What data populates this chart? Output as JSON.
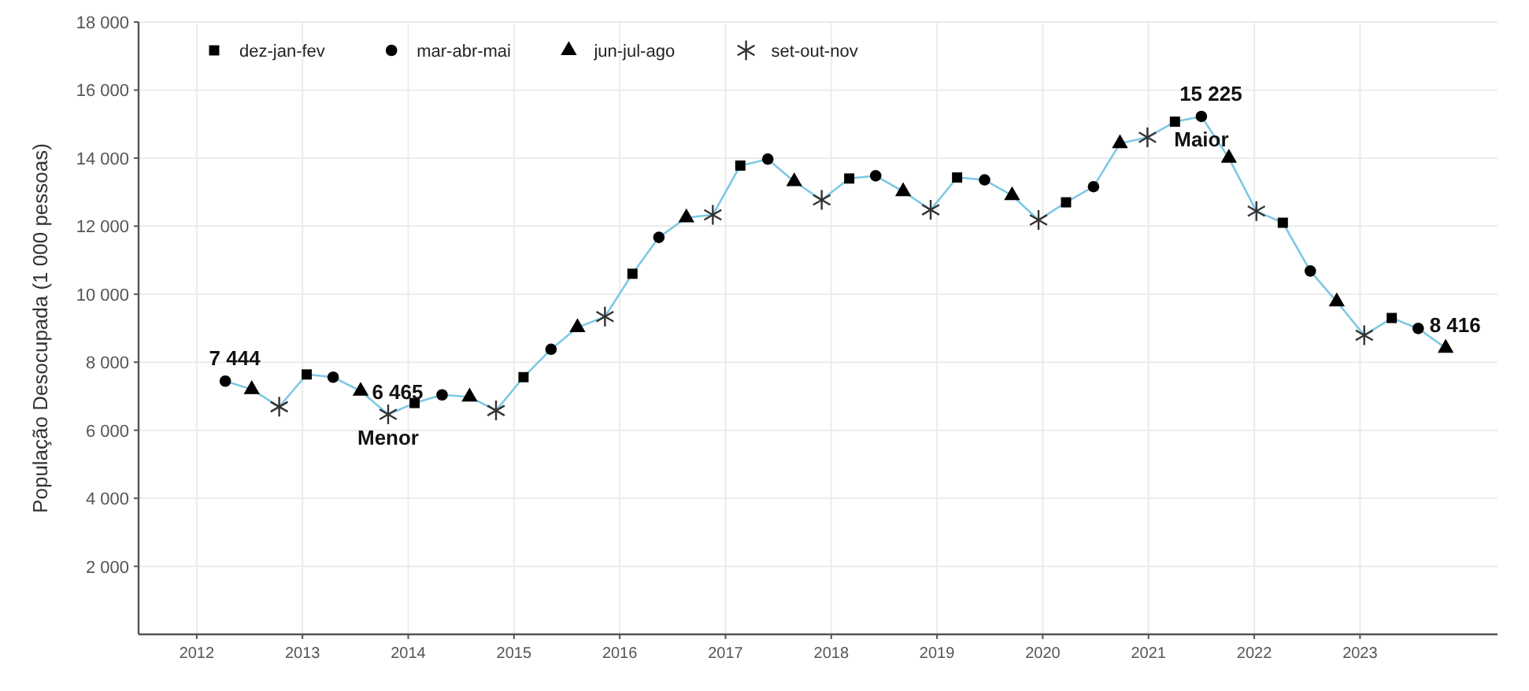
{
  "chart_data": {
    "type": "line",
    "ylabel": "População Desocupada (1 000 pessoas)",
    "xlim": [
      2011.45,
      2024.3
    ],
    "xticks": [
      2012,
      2013,
      2014,
      2015,
      2016,
      2017,
      2018,
      2019,
      2020,
      2021,
      2022,
      2023
    ],
    "ylim": [
      0,
      18000
    ],
    "yticks": [
      {
        "value": 2000,
        "label": "2 000"
      },
      {
        "value": 4000,
        "label": "4 000"
      },
      {
        "value": 6000,
        "label": "6 000"
      },
      {
        "value": 8000,
        "label": "8 000"
      },
      {
        "value": 10000,
        "label": "10 000"
      },
      {
        "value": 12000,
        "label": "12 000"
      },
      {
        "value": 14000,
        "label": "14 000"
      },
      {
        "value": 16000,
        "label": "16 000"
      },
      {
        "value": 18000,
        "label": "18 000"
      }
    ],
    "grid": true,
    "legend": "top left",
    "series": [
      {
        "color": "#7ec8e3",
        "marker": "none",
        "x": [
          2012.27,
          2012.52,
          2012.78,
          2013.04,
          2013.29,
          2013.55,
          2013.81,
          2014.06,
          2014.32,
          2014.58,
          2014.83,
          2015.09,
          2015.35,
          2015.6,
          2015.86,
          2016.12,
          2016.37,
          2016.63,
          2016.88,
          2017.14,
          2017.4,
          2017.65,
          2017.91,
          2018.17,
          2018.42,
          2018.68,
          2018.94,
          2019.19,
          2019.45,
          2019.71,
          2019.96,
          2020.22,
          2020.48,
          2020.73,
          2020.99,
          2021.25,
          2021.5,
          2021.76,
          2022.02,
          2022.27,
          2022.53,
          2022.78,
          2023.04,
          2023.3,
          2023.55,
          2023.81
        ],
        "values": [
          7444,
          7200,
          6690,
          7640,
          7560,
          7150,
          6465,
          6800,
          7040,
          6980,
          6580,
          7560,
          8380,
          9020,
          9340,
          10600,
          11670,
          12250,
          12330,
          13780,
          13970,
          13310,
          12770,
          13400,
          13480,
          13020,
          12480,
          13430,
          13360,
          12900,
          12180,
          12700,
          13160,
          14430,
          14610,
          15070,
          15225,
          14000,
          12440,
          12100,
          10680,
          9780,
          8790,
          9300,
          8990,
          8416
        ]
      },
      {
        "type": "scatter",
        "name": "dez-jan-fev",
        "color": "#000000",
        "marker": "square",
        "x": [
          2013.04,
          2014.06,
          2015.09,
          2016.12,
          2017.14,
          2018.17,
          2019.19,
          2020.22,
          2021.25,
          2022.27,
          2023.3
        ],
        "values": [
          7640,
          6800,
          7560,
          10600,
          13780,
          13400,
          13430,
          12700,
          15070,
          12100,
          9300
        ]
      },
      {
        "type": "scatter",
        "name": "mar-abr-mai",
        "color": "#000000",
        "marker": "circle",
        "x": [
          2012.27,
          2013.29,
          2014.32,
          2015.35,
          2016.37,
          2017.4,
          2018.42,
          2019.45,
          2020.48,
          2021.5,
          2022.53,
          2023.55
        ],
        "values": [
          7444,
          7560,
          7040,
          8380,
          11670,
          13970,
          13480,
          13360,
          13160,
          15225,
          10680,
          8990
        ]
      },
      {
        "type": "scatter",
        "name": "jun-jul-ago",
        "color": "#000000",
        "marker": "triangle",
        "x": [
          2012.52,
          2013.55,
          2014.58,
          2015.6,
          2016.63,
          2017.65,
          2018.68,
          2019.71,
          2020.73,
          2021.76,
          2022.78,
          2023.81
        ],
        "values": [
          7200,
          7150,
          6980,
          9020,
          12250,
          13310,
          13020,
          12900,
          14430,
          14000,
          9780,
          8416
        ]
      },
      {
        "type": "scatter",
        "name": "set-out-nov",
        "color": "#333333",
        "marker": "cross",
        "x": [
          2012.78,
          2013.81,
          2014.83,
          2015.86,
          2016.88,
          2017.91,
          2018.94,
          2019.96,
          2020.99,
          2022.02,
          2023.04
        ],
        "values": [
          6690,
          6465,
          6580,
          9340,
          12330,
          12770,
          12480,
          12180,
          14610,
          12440,
          8790
        ]
      }
    ],
    "annotations": [
      {
        "text": "7 444",
        "x": 2012.27,
        "y": 7444
      },
      {
        "text": "6 465",
        "x": 2013.81,
        "y": 6465
      },
      {
        "text": "Menor",
        "x": 2013.81,
        "y": 6465
      },
      {
        "text": "15 225",
        "x": 2021.5,
        "y": 15225
      },
      {
        "text": "Maior",
        "x": 2021.5,
        "y": 15225
      },
      {
        "text": "8 416",
        "x": 2023.81,
        "y": 8416
      }
    ]
  }
}
